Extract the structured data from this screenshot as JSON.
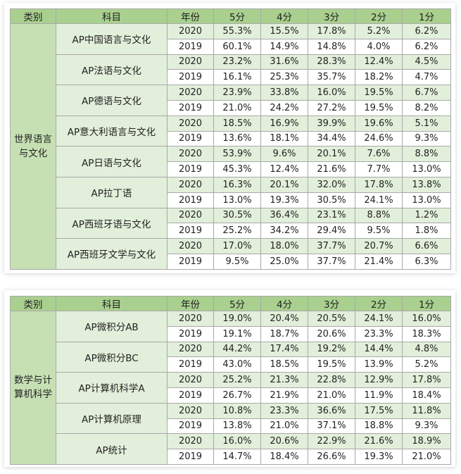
{
  "headers": [
    "类别",
    "科目",
    "年份",
    "5分",
    "4分",
    "3分",
    "2分",
    "1分"
  ],
  "tables": [
    {
      "category_line1": "世界语言",
      "category_line2": "与文化",
      "subjects": [
        {
          "name": "AP中国语言与文化",
          "rows": [
            {
              "year": "2020",
              "s5": "55.3%",
              "s4": "15.5%",
              "s3": "17.8%",
              "s2": "5.2%",
              "s1": "6.2%"
            },
            {
              "year": "2019",
              "s5": "60.1%",
              "s4": "14.9%",
              "s3": "14.8%",
              "s2": "4.0%",
              "s1": "6.2%"
            }
          ]
        },
        {
          "name": "AP法语与文化",
          "rows": [
            {
              "year": "2020",
              "s5": "23.2%",
              "s4": "31.6%",
              "s3": "28.3%",
              "s2": "12.4%",
              "s1": "4.5%"
            },
            {
              "year": "2019",
              "s5": "16.1%",
              "s4": "25.3%",
              "s3": "35.7%",
              "s2": "18.2%",
              "s1": "4.7%"
            }
          ]
        },
        {
          "name": "AP德语与文化",
          "rows": [
            {
              "year": "2020",
              "s5": "23.9%",
              "s4": "33.8%",
              "s3": "16.0%",
              "s2": "19.5%",
              "s1": "6.7%"
            },
            {
              "year": "2019",
              "s5": "21.0%",
              "s4": "24.2%",
              "s3": "27.2%",
              "s2": "19.5%",
              "s1": "8.2%"
            }
          ]
        },
        {
          "name": "AP意大利语言与文化",
          "rows": [
            {
              "year": "2020",
              "s5": "18.5%",
              "s4": "16.9%",
              "s3": "39.9%",
              "s2": "19.6%",
              "s1": "5.1%"
            },
            {
              "year": "2019",
              "s5": "13.6%",
              "s4": "18.1%",
              "s3": "34.4%",
              "s2": "24.6%",
              "s1": "9.3%"
            }
          ]
        },
        {
          "name": "AP日语与文化",
          "rows": [
            {
              "year": "2020",
              "s5": "53.9%",
              "s4": "9.6%",
              "s3": "20.1%",
              "s2": "7.6%",
              "s1": "8.8%"
            },
            {
              "year": "2019",
              "s5": "45.3%",
              "s4": "12.4%",
              "s3": "21.6%",
              "s2": "7.7%",
              "s1": "13.0%"
            }
          ]
        },
        {
          "name": "AP拉丁语",
          "rows": [
            {
              "year": "2020",
              "s5": "16.3%",
              "s4": "20.1%",
              "s3": "32.0%",
              "s2": "17.8%",
              "s1": "13.8%"
            },
            {
              "year": "2019",
              "s5": "13.0%",
              "s4": "19.3%",
              "s3": "30.5%",
              "s2": "24.1%",
              "s1": "13.0%"
            }
          ]
        },
        {
          "name": "AP西班牙语与文化",
          "rows": [
            {
              "year": "2020",
              "s5": "30.5%",
              "s4": "36.4%",
              "s3": "23.1%",
              "s2": "8.8%",
              "s1": "1.2%"
            },
            {
              "year": "2019",
              "s5": "25.2%",
              "s4": "34.2%",
              "s3": "29.4%",
              "s2": "9.5%",
              "s1": "1.8%"
            }
          ]
        },
        {
          "name": "AP西班牙文学与文化",
          "rows": [
            {
              "year": "2020",
              "s5": "17.0%",
              "s4": "18.0%",
              "s3": "37.7%",
              "s2": "20.7%",
              "s1": "6.6%"
            },
            {
              "year": "2019",
              "s5": "9.5%",
              "s4": "25.0%",
              "s3": "37.7%",
              "s2": "21.4%",
              "s1": "6.3%"
            }
          ]
        }
      ]
    },
    {
      "category_line1": "数学与计",
      "category_line2": "算机科学",
      "subjects": [
        {
          "name": "AP微积分AB",
          "rows": [
            {
              "year": "2020",
              "s5": "19.0%",
              "s4": "20.4%",
              "s3": "20.5%",
              "s2": "24.1%",
              "s1": "16.0%"
            },
            {
              "year": "2019",
              "s5": "19.1%",
              "s4": "18.7%",
              "s3": "20.6%",
              "s2": "23.3%",
              "s1": "18.3%"
            }
          ]
        },
        {
          "name": "AP微积分BC",
          "rows": [
            {
              "year": "2020",
              "s5": "44.2%",
              "s4": "17.4%",
              "s3": "19.2%",
              "s2": "14.4%",
              "s1": "4.8%"
            },
            {
              "year": "2019",
              "s5": "43.0%",
              "s4": "18.5%",
              "s3": "19.5%",
              "s2": "13.9%",
              "s1": "5.2%"
            }
          ]
        },
        {
          "name": "AP计算机科学A",
          "rows": [
            {
              "year": "2020",
              "s5": "25.2%",
              "s4": "21.3%",
              "s3": "22.8%",
              "s2": "12.9%",
              "s1": "17.8%"
            },
            {
              "year": "2019",
              "s5": "26.7%",
              "s4": "21.9%",
              "s3": "21.0%",
              "s2": "11.9%",
              "s1": "18.4%"
            }
          ]
        },
        {
          "name": "AP计算机原理",
          "rows": [
            {
              "year": "2020",
              "s5": "10.8%",
              "s4": "23.3%",
              "s3": "36.6%",
              "s2": "17.5%",
              "s1": "11.8%"
            },
            {
              "year": "2019",
              "s5": "13.8%",
              "s4": "21.0%",
              "s3": "37.1%",
              "s2": "18.8%",
              "s1": "9.3%"
            }
          ]
        },
        {
          "name": "AP统计",
          "rows": [
            {
              "year": "2020",
              "s5": "16.0%",
              "s4": "20.6%",
              "s3": "22.9%",
              "s2": "21.6%",
              "s1": "18.9%"
            },
            {
              "year": "2019",
              "s5": "14.7%",
              "s4": "18.4%",
              "s3": "26.6%",
              "s2": "19.3%",
              "s1": "21.0%"
            }
          ]
        }
      ]
    }
  ]
}
